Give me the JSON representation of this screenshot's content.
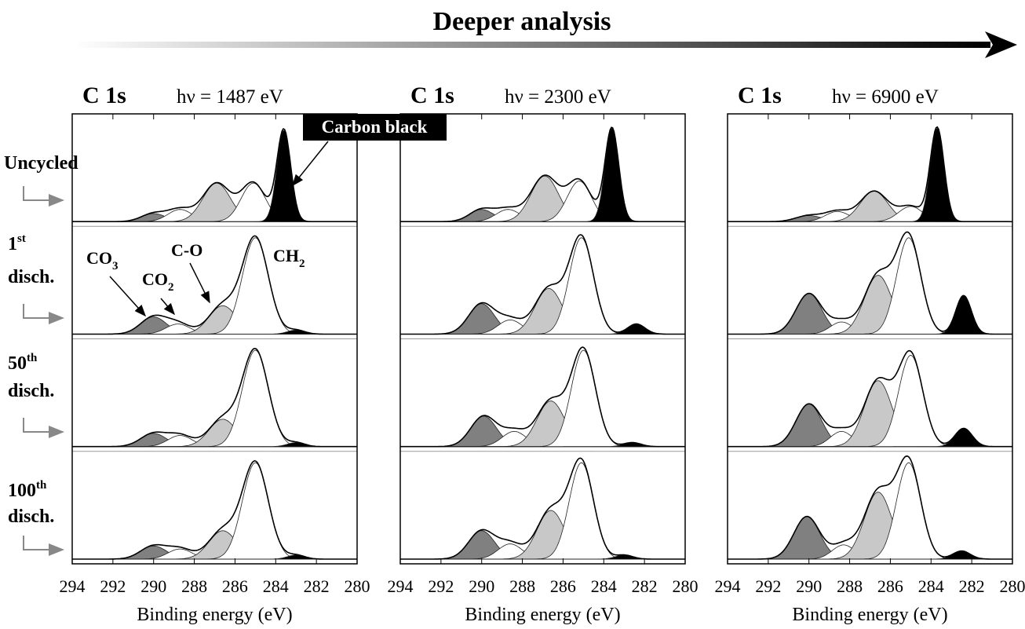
{
  "title": "Deeper analysis",
  "row_labels": [
    {
      "text": "Uncycled"
    },
    {
      "number": "1",
      "suffix": "st",
      "text": "disch."
    },
    {
      "number": "50",
      "suffix": "th",
      "text": "disch."
    },
    {
      "number": "100",
      "suffix": "th",
      "text": "disch."
    }
  ],
  "annotations": [
    {
      "base": "Carbon black"
    },
    {
      "base": "CO",
      "sub": "3"
    },
    {
      "base": "CO",
      "sub": "2"
    },
    {
      "base": "C-O"
    },
    {
      "base": "CH",
      "sub": "2"
    }
  ],
  "chart_data": [
    {
      "type": "line",
      "title": "C 1s",
      "subtitle": "hν = 1487 eV",
      "xlabel": "Binding energy (eV)",
      "xlim": [
        294,
        280
      ],
      "xticks": [
        294,
        292,
        290,
        288,
        286,
        284,
        282,
        280
      ],
      "ylim": [
        0,
        100
      ],
      "rows": [
        {
          "series": [
            {
              "color": "#808080",
              "center": 290,
              "height": 8,
              "fwhm": 1.4
            },
            {
              "color": "#ffffff",
              "center": 288.7,
              "height": 12,
              "fwhm": 1.4
            },
            {
              "color": "#c8c8c8",
              "center": 286.9,
              "height": 38,
              "fwhm": 1.6
            },
            {
              "color": "#ffffff",
              "center": 285.1,
              "height": 38,
              "fwhm": 1.4
            },
            {
              "color": "#000000",
              "center": 283.6,
              "height": 90,
              "fwhm": 0.8
            }
          ]
        },
        {
          "series": [
            {
              "color": "#808080",
              "center": 290,
              "height": 17,
              "fwhm": 1.5
            },
            {
              "color": "#ffffff",
              "center": 288.8,
              "height": 10,
              "fwhm": 1.4
            },
            {
              "color": "#c8c8c8",
              "center": 286.6,
              "height": 28,
              "fwhm": 1.6
            },
            {
              "color": "#ffffff",
              "center": 285,
              "height": 95,
              "fwhm": 1.5
            },
            {
              "color": "#000000",
              "center": 283,
              "height": 4,
              "fwhm": 1
            }
          ]
        },
        {
          "series": [
            {
              "color": "#808080",
              "center": 290,
              "height": 13,
              "fwhm": 1.5
            },
            {
              "color": "#ffffff",
              "center": 288.7,
              "height": 11,
              "fwhm": 1.4
            },
            {
              "color": "#c8c8c8",
              "center": 286.6,
              "height": 27,
              "fwhm": 1.6
            },
            {
              "color": "#ffffff",
              "center": 285,
              "height": 95,
              "fwhm": 1.5
            },
            {
              "color": "#000000",
              "center": 283,
              "height": 4,
              "fwhm": 1
            }
          ]
        },
        {
          "series": [
            {
              "color": "#808080",
              "center": 290,
              "height": 13,
              "fwhm": 1.5
            },
            {
              "color": "#ffffff",
              "center": 288.7,
              "height": 10,
              "fwhm": 1.4
            },
            {
              "color": "#c8c8c8",
              "center": 286.6,
              "height": 28,
              "fwhm": 1.6
            },
            {
              "color": "#ffffff",
              "center": 285,
              "height": 95,
              "fwhm": 1.5
            },
            {
              "color": "#000000",
              "center": 283,
              "height": 4,
              "fwhm": 1
            }
          ]
        }
      ]
    },
    {
      "type": "line",
      "title": "C 1s",
      "subtitle": "hν = 2300 eV",
      "xlabel": "Binding energy (eV)",
      "xlim": [
        294,
        280
      ],
      "xticks": [
        294,
        292,
        290,
        288,
        286,
        284,
        282,
        280
      ],
      "ylim": [
        0,
        100
      ],
      "rows": [
        {
          "series": [
            {
              "color": "#808080",
              "center": 290,
              "height": 12,
              "fwhm": 1.4
            },
            {
              "color": "#ffffff",
              "center": 288.7,
              "height": 12,
              "fwhm": 1.4
            },
            {
              "color": "#c8c8c8",
              "center": 286.9,
              "height": 45,
              "fwhm": 1.6
            },
            {
              "color": "#ffffff",
              "center": 285.2,
              "height": 40,
              "fwhm": 1.4
            },
            {
              "color": "#000000",
              "center": 283.6,
              "height": 92,
              "fwhm": 0.8
            }
          ]
        },
        {
          "series": [
            {
              "color": "#808080",
              "center": 290,
              "height": 30,
              "fwhm": 1.5
            },
            {
              "color": "#ffffff",
              "center": 288.6,
              "height": 14,
              "fwhm": 1.4
            },
            {
              "color": "#c8c8c8",
              "center": 286.7,
              "height": 45,
              "fwhm": 1.6
            },
            {
              "color": "#ffffff",
              "center": 285.1,
              "height": 95,
              "fwhm": 1.4
            },
            {
              "color": "#000000",
              "center": 282.4,
              "height": 10,
              "fwhm": 1
            }
          ]
        },
        {
          "series": [
            {
              "color": "#808080",
              "center": 289.9,
              "height": 30,
              "fwhm": 1.5
            },
            {
              "color": "#ffffff",
              "center": 288.4,
              "height": 15,
              "fwhm": 1.4
            },
            {
              "color": "#c8c8c8",
              "center": 286.6,
              "height": 45,
              "fwhm": 1.6
            },
            {
              "color": "#ffffff",
              "center": 285,
              "height": 95,
              "fwhm": 1.4
            },
            {
              "color": "#000000",
              "center": 282.6,
              "height": 4,
              "fwhm": 1
            }
          ]
        },
        {
          "series": [
            {
              "color": "#808080",
              "center": 290,
              "height": 28,
              "fwhm": 1.5
            },
            {
              "color": "#ffffff",
              "center": 288.6,
              "height": 15,
              "fwhm": 1.4
            },
            {
              "color": "#c8c8c8",
              "center": 286.6,
              "height": 48,
              "fwhm": 1.6
            },
            {
              "color": "#ffffff",
              "center": 285.1,
              "height": 95,
              "fwhm": 1.4
            },
            {
              "color": "#000000",
              "center": 283,
              "height": 4,
              "fwhm": 1
            }
          ]
        }
      ]
    },
    {
      "type": "line",
      "title": "C 1s",
      "subtitle": "hν = 6900 eV",
      "xlabel": "Binding energy (eV)",
      "xlim": [
        294,
        280
      ],
      "xticks": [
        294,
        292,
        290,
        288,
        286,
        284,
        282,
        280
      ],
      "ylim": [
        0,
        100
      ],
      "rows": [
        {
          "series": [
            {
              "color": "#808080",
              "center": 290,
              "height": 6,
              "fwhm": 1.5
            },
            {
              "color": "#ffffff",
              "center": 288.6,
              "height": 10,
              "fwhm": 1.4
            },
            {
              "color": "#c8c8c8",
              "center": 286.8,
              "height": 30,
              "fwhm": 1.6
            },
            {
              "color": "#ffffff",
              "center": 285,
              "height": 15,
              "fwhm": 1.4
            },
            {
              "color": "#000000",
              "center": 283.7,
              "height": 92,
              "fwhm": 0.8
            }
          ]
        },
        {
          "series": [
            {
              "color": "#808080",
              "center": 290,
              "height": 40,
              "fwhm": 1.5
            },
            {
              "color": "#ffffff",
              "center": 288.4,
              "height": 12,
              "fwhm": 1.3
            },
            {
              "color": "#c8c8c8",
              "center": 286.6,
              "height": 58,
              "fwhm": 1.6
            },
            {
              "color": "#ffffff",
              "center": 285.1,
              "height": 95,
              "fwhm": 1.4
            },
            {
              "color": "#000000",
              "center": 282.4,
              "height": 38,
              "fwhm": 0.9
            }
          ]
        },
        {
          "series": [
            {
              "color": "#808080",
              "center": 290,
              "height": 42,
              "fwhm": 1.5
            },
            {
              "color": "#ffffff",
              "center": 288.4,
              "height": 15,
              "fwhm": 1.3
            },
            {
              "color": "#c8c8c8",
              "center": 286.6,
              "height": 65,
              "fwhm": 1.6
            },
            {
              "color": "#ffffff",
              "center": 285,
              "height": 90,
              "fwhm": 1.4
            },
            {
              "color": "#000000",
              "center": 282.4,
              "height": 18,
              "fwhm": 1
            }
          ]
        },
        {
          "series": [
            {
              "color": "#808080",
              "center": 290.1,
              "height": 42,
              "fwhm": 1.5
            },
            {
              "color": "#ffffff",
              "center": 288.3,
              "height": 14,
              "fwhm": 1.3
            },
            {
              "color": "#c8c8c8",
              "center": 286.6,
              "height": 66,
              "fwhm": 1.6
            },
            {
              "color": "#ffffff",
              "center": 285.1,
              "height": 95,
              "fwhm": 1.4
            },
            {
              "color": "#000000",
              "center": 282.5,
              "height": 8,
              "fwhm": 1
            }
          ]
        }
      ]
    }
  ]
}
